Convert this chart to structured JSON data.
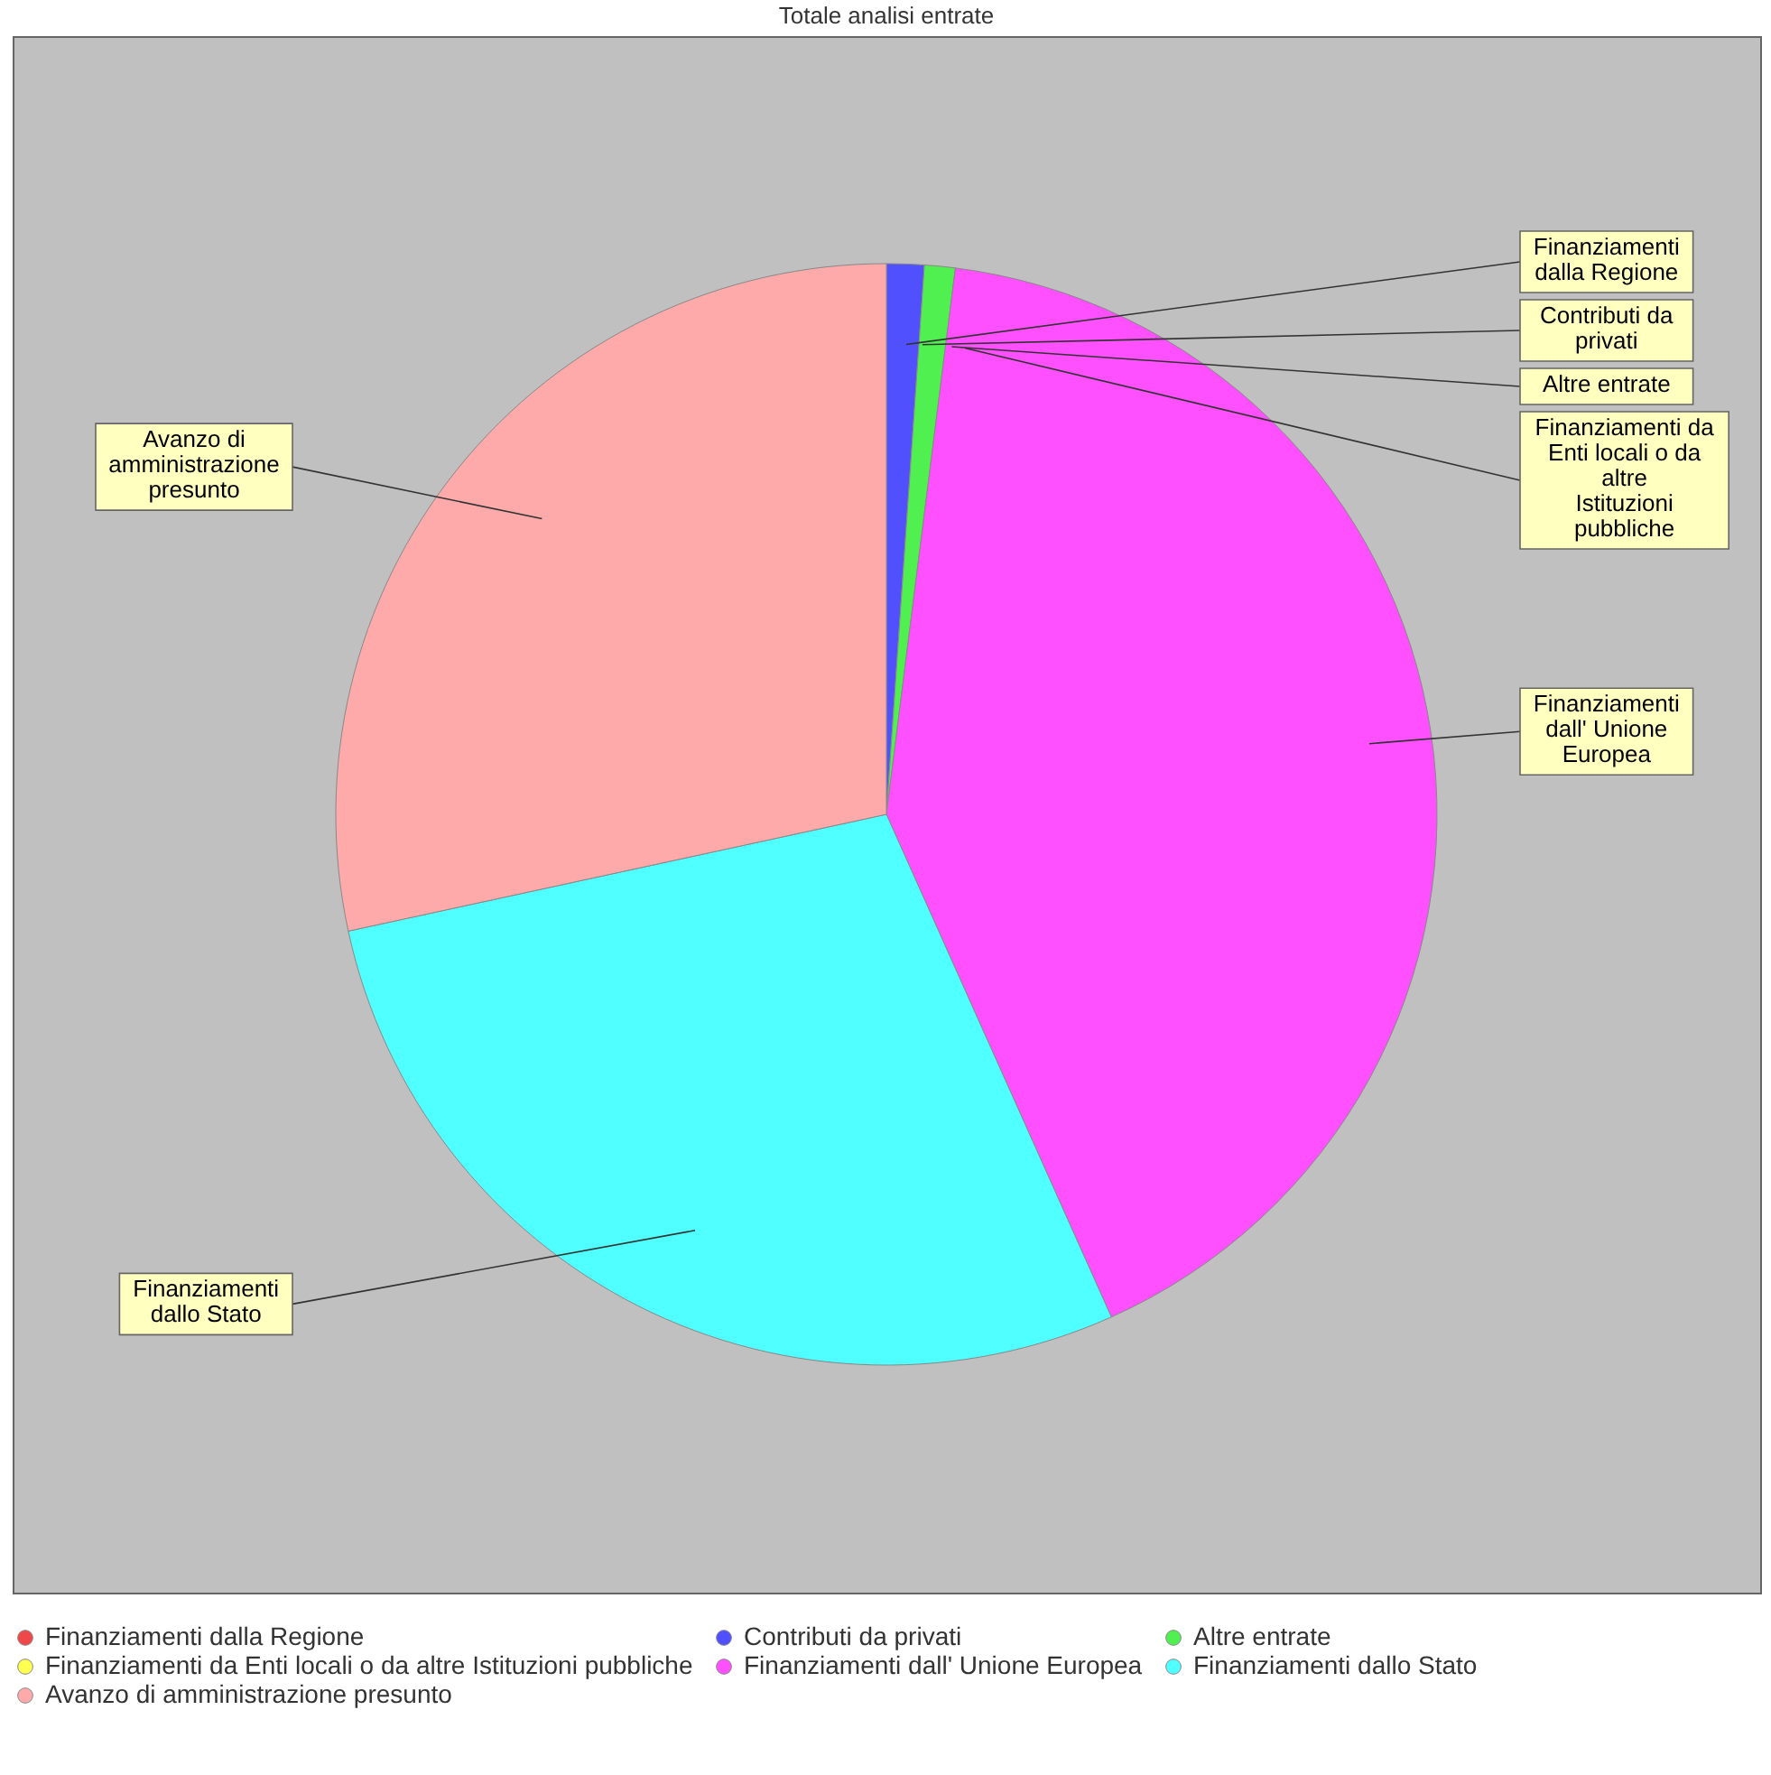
{
  "chart_data": {
    "type": "pie",
    "title": "Totale analisi entrate",
    "categories": [
      "Finanziamenti dalla Regione",
      "Contributi da privati",
      "Altre entrate",
      "Finanziamenti da Enti locali o da altre Istituzioni pubbliche",
      "Finanziamenti dall' Unione Europea",
      "Finanziamenti dallo Stato",
      "Avanzo di amministrazione presunto"
    ],
    "values": [
      0,
      1.1,
      0.9,
      0,
      41.3,
      28.3,
      28.4
    ],
    "colors": [
      "#f04848",
      "#5050ff",
      "#50f050",
      "#ffff50",
      "#ff50ff",
      "#50ffff",
      "#ffaaaa"
    ],
    "legend": "bottom"
  }
}
